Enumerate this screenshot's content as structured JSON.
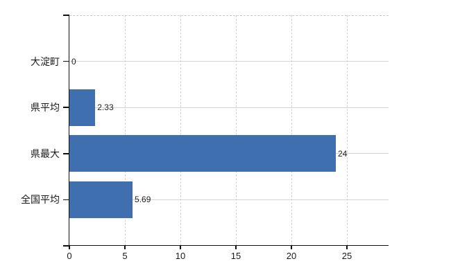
{
  "chart_data": {
    "type": "bar",
    "orientation": "horizontal",
    "title": "",
    "xlabel": "",
    "ylabel": "",
    "categories": [
      "大淀町",
      "県平均",
      "県最大",
      "全国平均"
    ],
    "values": [
      0,
      2.33,
      24,
      5.69
    ],
    "value_labels": [
      "0",
      "2.33",
      "24",
      "5.69"
    ],
    "xlim": [
      0,
      28.75
    ],
    "xtick_labels": [
      "0",
      "5",
      "10",
      "15",
      "20",
      "25"
    ],
    "xtick_values": [
      0,
      5,
      10,
      15,
      20,
      25
    ],
    "grid": true,
    "legend": false,
    "colors": {
      "bar": "#3f6fae",
      "h_gridline": "#cfd6cf",
      "v_gridline": "#d4d4d4",
      "plot_top_border": "#c9c9c9",
      "axis": "#111111",
      "text": "#1a1a1a",
      "background": "#ffffff"
    }
  }
}
